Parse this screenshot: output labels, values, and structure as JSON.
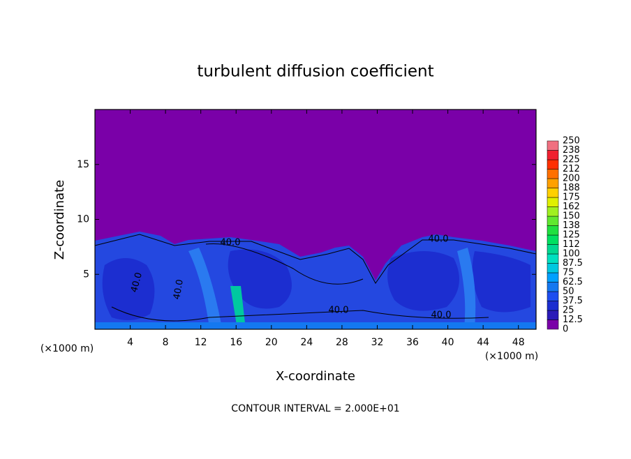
{
  "chart_data": {
    "type": "contour",
    "title": "turbulent diffusion coefficient",
    "x_label": "X-coordinate",
    "y_label": "Z-coordinate",
    "x_unit": "(×1000 m)",
    "xlim": [
      0,
      50
    ],
    "xticks": [
      4,
      8,
      12,
      16,
      20,
      24,
      28,
      32,
      36,
      40,
      44,
      48
    ],
    "ylim": [
      0,
      20
    ],
    "yticks": [
      5,
      10,
      15
    ],
    "colorbar": {
      "levels": [
        0,
        12.5,
        25,
        37.5,
        50,
        62.5,
        75,
        87.5,
        100,
        112,
        125,
        138,
        150,
        162,
        175,
        188,
        200,
        212,
        225,
        238,
        250
      ],
      "colors": [
        "#7a00a8",
        "#2a1ab8",
        "#1c2ed0",
        "#1e4ef0",
        "#1478f0",
        "#00a0ff",
        "#00c8e0",
        "#00e0c0",
        "#00d890",
        "#00e060",
        "#20e040",
        "#60e830",
        "#a0f020",
        "#e0f000",
        "#ffd000",
        "#ffa000",
        "#ff7000",
        "#ff3000",
        "#f02030",
        "#f07080"
      ]
    },
    "contour_labels": [
      "40.0",
      "40.0",
      "40.0",
      "40.0",
      "40.0",
      "40.0"
    ],
    "footer": "CONTOUR INTERVAL = 2.000E+01"
  }
}
